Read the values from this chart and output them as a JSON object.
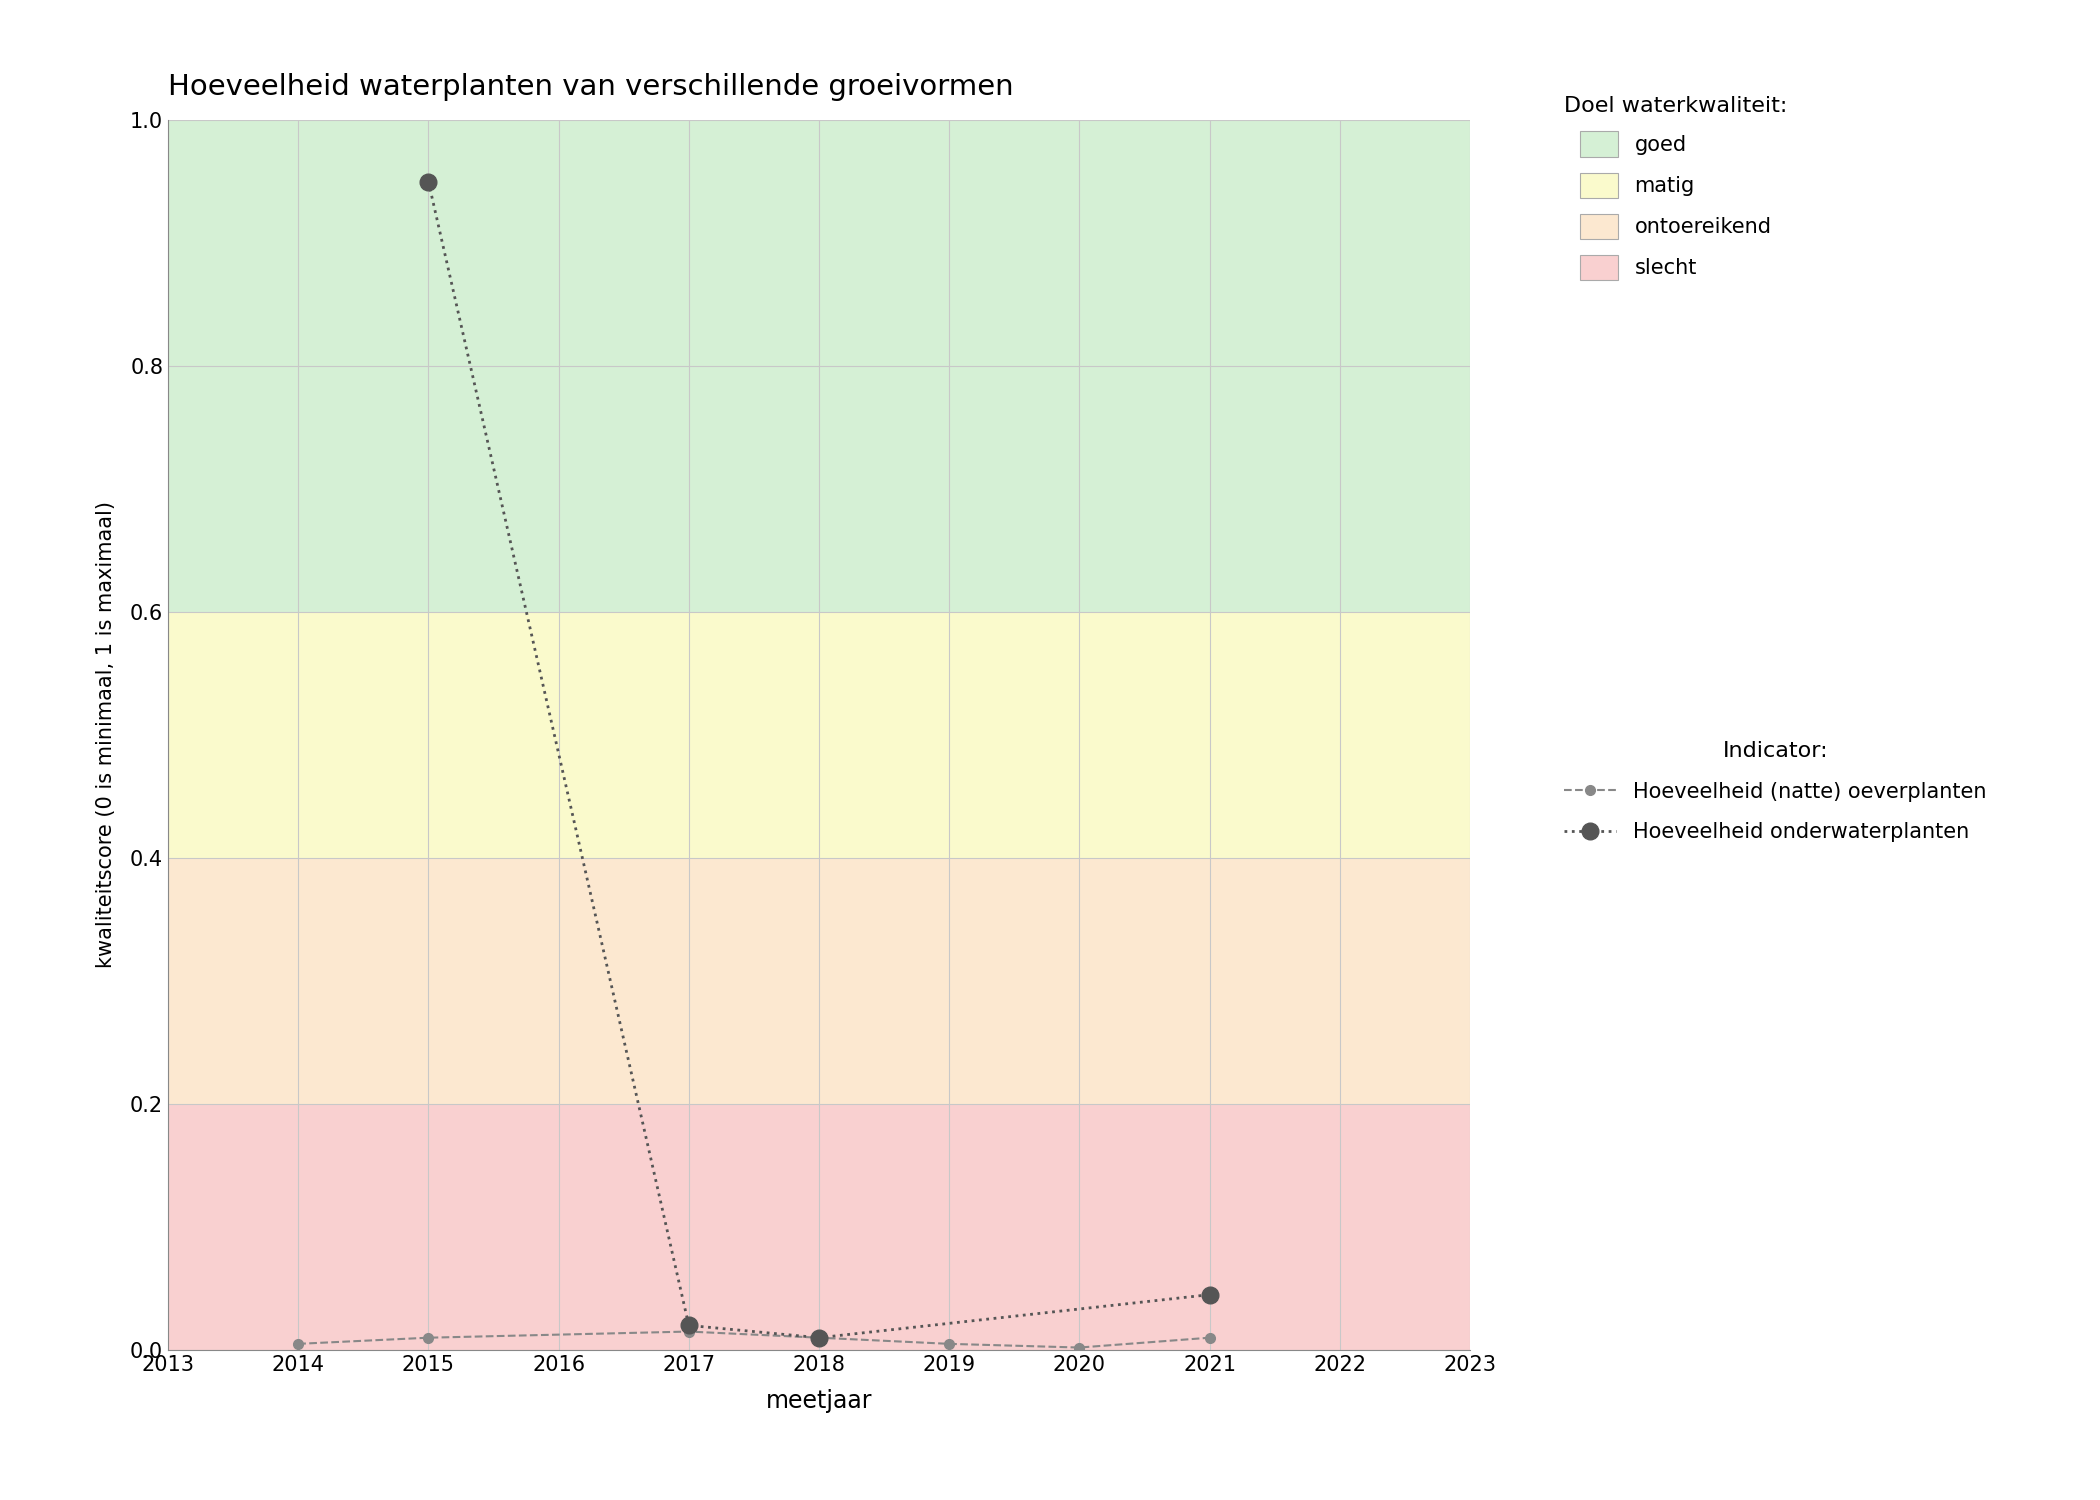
{
  "title": "Hoeveelheid waterplanten van verschillende groeivormen",
  "xlabel": "meetjaar",
  "ylabel": "kwaliteitscore (0 is minimaal, 1 is maximaal)",
  "xlim": [
    2013,
    2023
  ],
  "ylim": [
    0,
    1.0
  ],
  "xticks": [
    2013,
    2014,
    2015,
    2016,
    2017,
    2018,
    2019,
    2020,
    2021,
    2022,
    2023
  ],
  "yticks": [
    0.0,
    0.2,
    0.4,
    0.6,
    0.8,
    1.0
  ],
  "bg_bands": [
    {
      "ymin": 0.6,
      "ymax": 1.0,
      "color": "#d5f0d5",
      "label": "goed"
    },
    {
      "ymin": 0.4,
      "ymax": 0.6,
      "color": "#fafacc",
      "label": "matig"
    },
    {
      "ymin": 0.2,
      "ymax": 0.4,
      "color": "#fce8d0",
      "label": "ontoereikend"
    },
    {
      "ymin": 0.0,
      "ymax": 0.2,
      "color": "#f9d0d0",
      "label": "slecht"
    }
  ],
  "line1": {
    "label": "Hoeveelheid (natte) oeverplanten",
    "x": [
      2014,
      2015,
      2017,
      2018,
      2019,
      2020,
      2021
    ],
    "y": [
      0.005,
      0.01,
      0.015,
      0.01,
      0.005,
      0.002,
      0.01
    ],
    "linestyle": "--",
    "color": "#888888",
    "marker": "o",
    "markersize": 7,
    "linewidth": 1.5
  },
  "line2": {
    "label": "Hoeveelheid onderwaterplanten",
    "x": [
      2015,
      2017,
      2018,
      2021
    ],
    "y": [
      0.95,
      0.02,
      0.01,
      0.045
    ],
    "linestyle": ":",
    "color": "#555555",
    "marker": "o",
    "markersize": 12,
    "linewidth": 2.0
  },
  "legend_title_doel": "Doel waterkwaliteit:",
  "legend_title_indicator": "Indicator:",
  "figsize": [
    21.0,
    15.0
  ],
  "dpi": 100,
  "background_color": "#ffffff",
  "grid_color": "#c8c8c8",
  "grid_linewidth": 0.8
}
